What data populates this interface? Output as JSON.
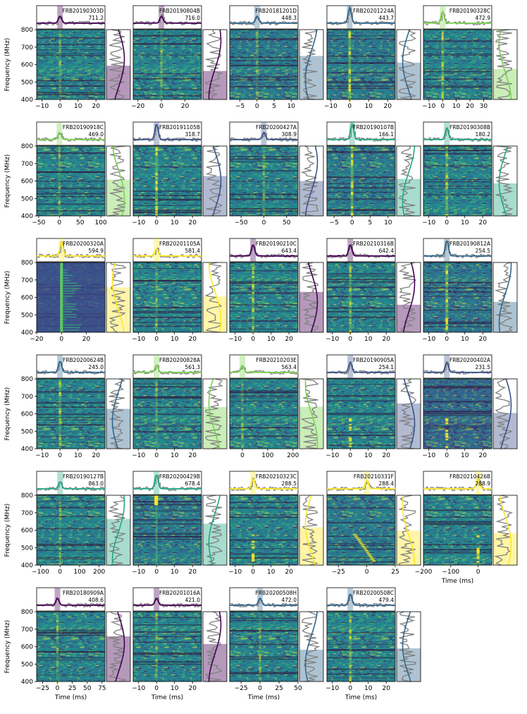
{
  "chart_data": {
    "type": "heatmap",
    "description_kind": "grid of FRB dynamic spectra",
    "shared": {
      "ylabel": "Frequency (MHz)",
      "xlabel": "Time (ms)",
      "ylim": [
        400,
        800
      ],
      "yticks": [
        "800",
        "700",
        "600",
        "500",
        "400"
      ]
    },
    "colors": {
      "frame": "#000000",
      "gray_trace": "#808080",
      "viridis": [
        "#440154",
        "#3b528b",
        "#21918c",
        "#5ec962",
        "#fde725"
      ],
      "bg_low": "#31688e",
      "bg_mid": "#21918c"
    },
    "panels": [
      {
        "name": "FRB20190303D",
        "dm": "711.2",
        "xticks": [
          "−10",
          "0",
          "10",
          "20"
        ],
        "xlim": [
          -13,
          25
        ],
        "color": "#440154",
        "bg": "#26828e",
        "signal": "weak",
        "xlabel_shown": false
      },
      {
        "name": "FRB20190804B",
        "dm": "716.0",
        "xticks": [
          "−20",
          "0",
          "20"
        ],
        "xlim": [
          -24,
          34
        ],
        "color": "#440154",
        "bg": "#26828e",
        "signal": "weak",
        "xlabel_shown": false
      },
      {
        "name": "FRB20181201D",
        "dm": "448.3",
        "xticks": [
          "−5",
          "0",
          "5",
          "10"
        ],
        "xlim": [
          -8,
          12
        ],
        "color": "#31688e",
        "bg": "#2c728e",
        "signal": "weak",
        "xlabel_shown": false
      },
      {
        "name": "FRB20201224A",
        "dm": "443.7",
        "xticks": [
          "−10",
          "0",
          "10",
          "20"
        ],
        "xlim": [
          -12,
          24
        ],
        "color": "#31688e",
        "bg": "#2c728e",
        "signal": "strong",
        "xlabel_shown": false
      },
      {
        "name": "FRB20190328C",
        "dm": "472.9",
        "xticks": [
          "−10",
          "0",
          "10",
          "20",
          "30"
        ],
        "xlim": [
          -14,
          36
        ],
        "color": "#7ad151",
        "bg": "#26828e",
        "signal": "medium",
        "xlabel_shown": false
      },
      {
        "name": "FRB20190918C",
        "dm": "469.0",
        "xticks": [
          "−50",
          "0",
          "50",
          "100"
        ],
        "xlim": [
          -55,
          110
        ],
        "color": "#7ad151",
        "bg": "#26828e",
        "signal": "weak",
        "xlabel_shown": false
      },
      {
        "name": "FRB20191105B",
        "dm": "318.7",
        "xticks": [
          "−10",
          "0",
          "10",
          "20"
        ],
        "xlim": [
          -13,
          25
        ],
        "color": "#3b528b",
        "bg": "#26828e",
        "signal": "strong",
        "xlabel_shown": false
      },
      {
        "name": "FRB20200427A",
        "dm": "308.9",
        "xticks": [
          "−50",
          "0",
          "50"
        ],
        "xlim": [
          -75,
          75
        ],
        "color": "#3b528b",
        "bg": "#26828e",
        "signal": "weak",
        "xlabel_shown": false
      },
      {
        "name": "FRB20190107B",
        "dm": "166.1",
        "xticks": [
          "−5",
          "0",
          "5",
          "10"
        ],
        "xlim": [
          -7,
          12
        ],
        "color": "#22a884",
        "bg": "#2c728e",
        "signal": "strong",
        "xlabel_shown": false
      },
      {
        "name": "FRB20190308B",
        "dm": "180.2",
        "xticks": [
          "−10",
          "0",
          "10",
          "20"
        ],
        "xlim": [
          -13,
          25
        ],
        "color": "#22a884",
        "bg": "#26828e",
        "signal": "medium",
        "xlabel_shown": false
      },
      {
        "name": "FRB20200320A",
        "dm": "594.9",
        "xticks": [
          "−20",
          "0",
          "20"
        ],
        "xlim": [
          -20,
          35
        ],
        "color": "#fde725",
        "bg": "#3b528b",
        "signal": "scattered",
        "xlabel_shown": false
      },
      {
        "name": "FRB20201105A",
        "dm": "581.4",
        "xticks": [
          "−10",
          "0",
          "10",
          "20"
        ],
        "xlim": [
          -13,
          25
        ],
        "color": "#fde725",
        "bg": "#26828e",
        "signal": "weak",
        "xlabel_shown": false
      },
      {
        "name": "FRB20190210C",
        "dm": "643.4",
        "xticks": [
          "−10",
          "0",
          "10",
          "20"
        ],
        "xlim": [
          -13,
          25
        ],
        "color": "#440154",
        "bg": "#26828e",
        "signal": "medium",
        "xlabel_shown": false
      },
      {
        "name": "FRB20210316B",
        "dm": "642.4",
        "xticks": [
          "−10",
          "0",
          "10",
          "20"
        ],
        "xlim": [
          -13,
          25
        ],
        "color": "#440154",
        "bg": "#26828e",
        "signal": "medium",
        "xlabel_shown": false
      },
      {
        "name": "FRB20190812A",
        "dm": "254.5",
        "xticks": [
          "−10",
          "0",
          "10",
          "20"
        ],
        "xlim": [
          -13,
          25
        ],
        "color": "#31688e",
        "bg": "#31688e",
        "signal": "strong",
        "xlabel_shown": false
      },
      {
        "name": "FRB20200624B",
        "dm": "245.0",
        "xticks": [
          "−10",
          "0",
          "10",
          "20"
        ],
        "xlim": [
          -13,
          25
        ],
        "color": "#31688e",
        "bg": "#26828e",
        "signal": "medium",
        "xlabel_shown": false
      },
      {
        "name": "FRB20200828A",
        "dm": "561.3",
        "xticks": [
          "−10",
          "0",
          "10",
          "20"
        ],
        "xlim": [
          -13,
          25
        ],
        "color": "#7ad151",
        "bg": "#26828e",
        "signal": "weak",
        "xlabel_shown": false
      },
      {
        "name": "FRB20210203E",
        "dm": "563.4",
        "xticks": [
          "0",
          "100",
          "200"
        ],
        "xlim": [
          -50,
          220
        ],
        "color": "#7ad151",
        "bg": "#26828e",
        "signal": "weak",
        "xlabel_shown": false
      },
      {
        "name": "FRB20190905A",
        "dm": "254.1",
        "xticks": [
          "−10",
          "0",
          "10",
          "20"
        ],
        "xlim": [
          -13,
          25
        ],
        "color": "#3b528b",
        "bg": "#26828e",
        "signal": "low",
        "xlabel_shown": false
      },
      {
        "name": "FRB20200402A",
        "dm": "231.5",
        "xticks": [
          "−10",
          "0",
          "10",
          "20"
        ],
        "xlim": [
          -13,
          25
        ],
        "color": "#3b528b",
        "bg": "#3b528b",
        "signal": "low",
        "xlabel_shown": false
      },
      {
        "name": "FRB20190127B",
        "dm": "863.0",
        "xticks": [
          "−100",
          "0",
          "100",
          "200"
        ],
        "xlim": [
          -120,
          230
        ],
        "color": "#22a884",
        "bg": "#26828e",
        "signal": "weak",
        "xlabel_shown": false
      },
      {
        "name": "FRB20200429B",
        "dm": "678.4",
        "xticks": [
          "−10",
          "0",
          "10",
          "20"
        ],
        "xlim": [
          -13,
          25
        ],
        "color": "#22a884",
        "bg": "#2c728e",
        "signal": "topband",
        "xlabel_shown": false
      },
      {
        "name": "FRB20210323C",
        "dm": "288.5",
        "xticks": [
          "−10",
          "0",
          "10",
          "20"
        ],
        "xlim": [
          -13,
          25
        ],
        "color": "#fde725",
        "bg": "#26828e",
        "signal": "low",
        "xlabel_shown": false
      },
      {
        "name": "FRB20210331F",
        "dm": "288.4",
        "xticks": [
          "−25",
          "0",
          "25"
        ],
        "xlim": [
          -35,
          25
        ],
        "color": "#fde725",
        "bg": "#2c728e",
        "signal": "drift",
        "xlabel_shown": false
      },
      {
        "name": "FRB20210426B",
        "dm": "288.9",
        "xticks": [
          "−200",
          "−100",
          "0"
        ],
        "xlim": [
          -200,
          50
        ],
        "color": "#fde725",
        "bg": "#26828e",
        "signal": "low",
        "xlabel_shown": true
      },
      {
        "name": "FRB20180909A",
        "dm": "408.6",
        "xticks": [
          "−25",
          "0",
          "25",
          "50",
          "75"
        ],
        "xlim": [
          -35,
          80
        ],
        "color": "#440154",
        "bg": "#26828e",
        "signal": "weak",
        "xlabel_shown": true
      },
      {
        "name": "FRB20201016A",
        "dm": "421.0",
        "xticks": [
          "−10",
          "0",
          "10",
          "20"
        ],
        "xlim": [
          -13,
          25
        ],
        "color": "#440154",
        "bg": "#26828e",
        "signal": "weak",
        "xlabel_shown": true
      },
      {
        "name": "FRB20200508H",
        "dm": "472.0",
        "xticks": [
          "−25",
          "0",
          "25",
          "50"
        ],
        "xlim": [
          -40,
          50
        ],
        "color": "#31688e",
        "bg": "#26828e",
        "signal": "weak",
        "xlabel_shown": true
      },
      {
        "name": "FRB20200508C",
        "dm": "479.4",
        "xticks": [
          "−10",
          "0",
          "10",
          "20"
        ],
        "xlim": [
          -13,
          25
        ],
        "color": "#31688e",
        "bg": "#26828e",
        "signal": "medium",
        "xlabel_shown": true
      }
    ]
  }
}
